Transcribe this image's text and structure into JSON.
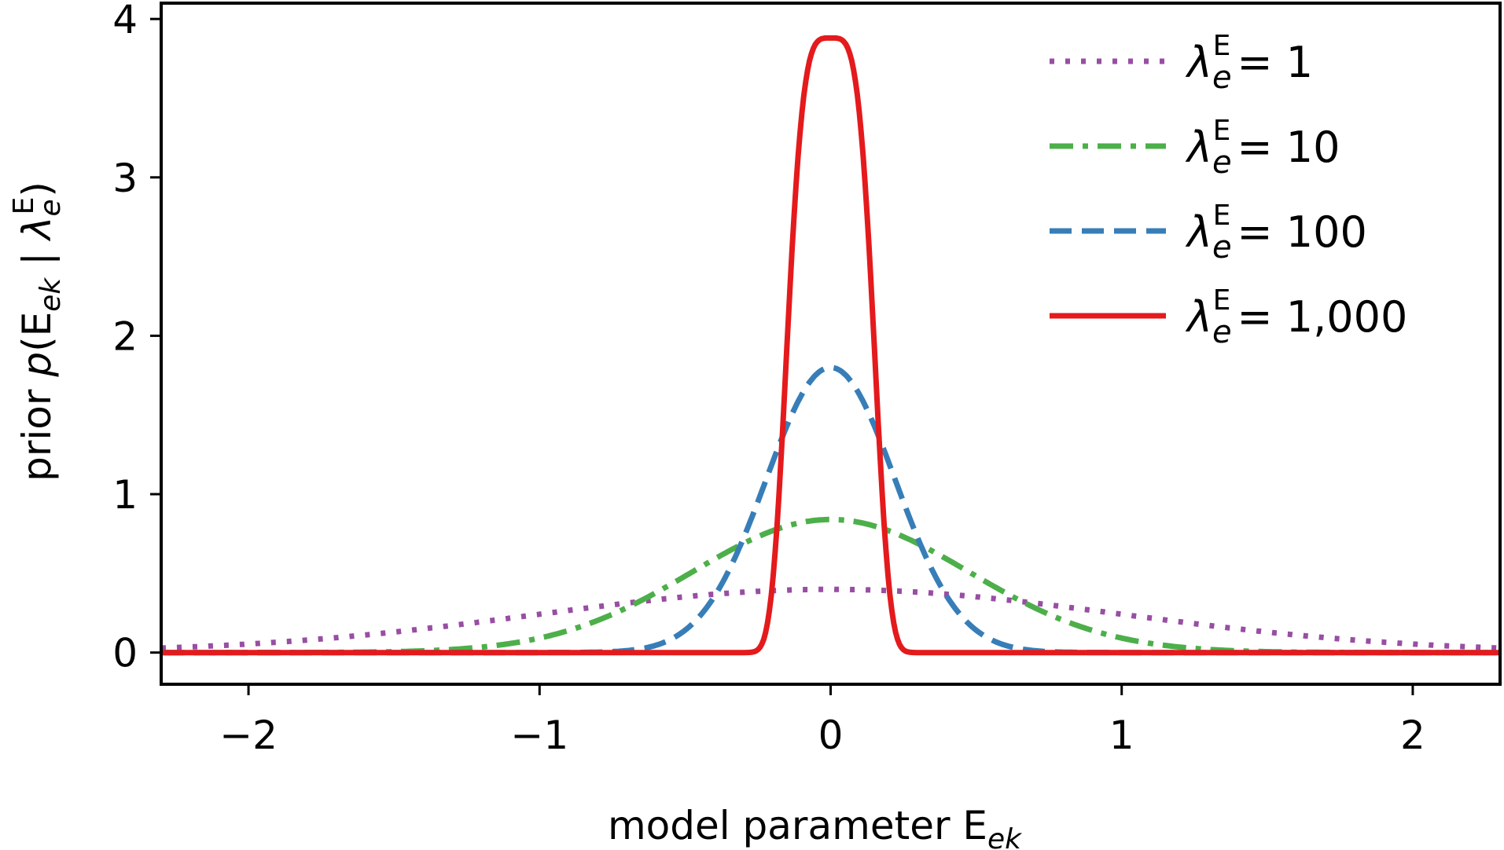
{
  "chart_data": {
    "type": "line",
    "title": "",
    "xlabel": {
      "prefix": "model parameter E",
      "subscript": "ek"
    },
    "ylabel": {
      "prefix": "prior ",
      "p": "p",
      "open": "(E",
      "sub1": "ek",
      "bar": " | ",
      "lambda": "λ",
      "sub2": "e",
      "sup": "E",
      "close": ")"
    },
    "xlim": [
      -2.3,
      2.3
    ],
    "ylim": [
      -0.2,
      4.1
    ],
    "xticks": [
      -2,
      -1,
      0,
      1,
      2
    ],
    "xtick_labels": [
      "−2",
      "−1",
      "0",
      "1",
      "2"
    ],
    "yticks": [
      0,
      1,
      2,
      3,
      4
    ],
    "ytick_labels": [
      "0",
      "1",
      "2",
      "3",
      "4"
    ],
    "grid": false,
    "legend_position": "top-right",
    "series": [
      {
        "name": "λ_e^E = 1",
        "lambda": 1,
        "value_label": "= 1",
        "color": "#984ea3",
        "style": "dotted",
        "peak": 0.3989
      },
      {
        "name": "λ_e^E = 10",
        "lambda": 10,
        "value_label": "= 10",
        "color": "#4daf4a",
        "style": "dashdot",
        "peak": 0.84
      },
      {
        "name": "λ_e^E = 100",
        "lambda": 100,
        "value_label": "= 100",
        "color": "#377eb8",
        "style": "dashed",
        "peak": 1.8
      },
      {
        "name": "λ_e^E = 1,000",
        "lambda": 1000,
        "value_label": "= 1,000",
        "color": "#e41a1c",
        "style": "solid",
        "peak": 3.88
      }
    ],
    "legend_symbol": {
      "lambda": "λ",
      "sub": "e",
      "sup": "E"
    }
  }
}
